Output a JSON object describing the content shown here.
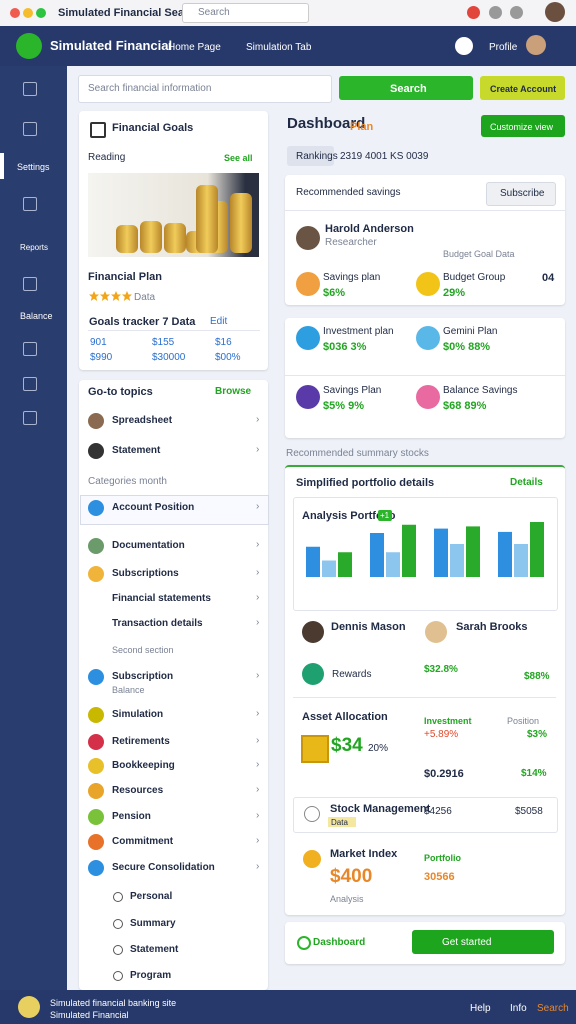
{
  "browser": {
    "tab_title": "Simulated Financial Search",
    "search": "Search"
  },
  "header": {
    "brand": "Simulated Financial",
    "nav": [
      "Home Page",
      "Simulation Tab"
    ],
    "profile": "Profile"
  },
  "sidebar": [
    "Settings",
    "Reports",
    "Balance"
  ],
  "toolbar": {
    "search_placeholder": "Search financial information",
    "search_button": "Search",
    "create_button": "Create Account"
  },
  "goal_card": {
    "title": "Financial Goals",
    "subtitle": "Reading",
    "link": "See all",
    "plan": "Financial Plan",
    "rating": "Data",
    "section": "Goals tracker 7 Data",
    "section_link": "Edit",
    "stats": [
      [
        "901",
        "$990"
      ],
      [
        "$155",
        "$30000"
      ],
      [
        "$16",
        "$00%"
      ]
    ]
  },
  "topics": {
    "header": "Go-to topics",
    "header_link": "Browse",
    "items": [
      "Spreadsheet",
      "Statement",
      "Categories month",
      "Account Position",
      "Documentation",
      "Subscriptions",
      "Financial statements",
      "Transaction details",
      "Second section",
      "Subscription",
      "Balance",
      "Simulation",
      "Retirements",
      "Bookkeeping",
      "Resources",
      "Pension",
      "Commitment",
      "Secure Consolidation",
      "Personal",
      "Summary",
      "Statement",
      "Program"
    ]
  },
  "dashboard": {
    "title": "Dashboard",
    "tag": "Plan",
    "customize": "Customize view",
    "chip": "Rankings",
    "code": "2319 4001 KS 0039",
    "savings": {
      "title": "Recommended savings",
      "button": "Subscribe",
      "person": "Harold Anderson",
      "role": "Researcher",
      "note": "Budget Goal Data",
      "count": "04",
      "metrics": [
        {
          "label": "Savings plan",
          "value": "$6%"
        },
        {
          "label": "Budget Group",
          "value": "29%"
        },
        {
          "label": "Investment plan",
          "value": "$036 3%"
        },
        {
          "label": "Gemini Plan",
          "value": "$0% 88%"
        },
        {
          "label": "Savings Plan",
          "value": "$5% 9%"
        },
        {
          "label": "Balance Savings",
          "value": "$68 89%"
        }
      ]
    },
    "summary_label": "Recommended summary stocks",
    "portfolio": {
      "title": "Simplified portfolio details",
      "link": "Details",
      "chart": {
        "type": "bar",
        "title": "Analysis Portfolio",
        "badge": "+1",
        "categories": [
          null,
          null,
          null,
          null
        ],
        "ylim": [
          0,
          100
        ],
        "series": [
          {
            "color": "#2e8fe0",
            "values": [
              55,
              80,
              88,
              82
            ]
          },
          {
            "color": "#8cc6ef",
            "values": [
              30,
              45,
              60,
              60
            ]
          },
          {
            "color": "#2aaa2a",
            "values": [
              45,
              95,
              92,
              100
            ]
          }
        ]
      },
      "people": [
        "Dennis Mason",
        "Sarah Brooks"
      ],
      "rewards": "Rewards",
      "rewards_a": "$32.8%",
      "rewards_b": "$88%",
      "allocation": {
        "title": "Asset Allocation",
        "col_a": "Investment",
        "col_b": "Position",
        "big": "$34",
        "pct": "20%",
        "a1": "+5.89%",
        "b1": "$3%",
        "a2": "$0.2916",
        "b2": "$14%"
      },
      "stock": {
        "title": "Stock Management",
        "badge": "Data",
        "a": "$4256",
        "b": "$5058"
      },
      "market": {
        "title": "Market Index",
        "big": "$400",
        "sub": "Analysis",
        "col": "Portfolio",
        "val": "30566"
      }
    },
    "footer_link": "Dashboard",
    "start": "Get started"
  },
  "footer": {
    "line1": "Simulated financial banking site",
    "line2": "Simulated Financial",
    "links": [
      "Help",
      "Info",
      "Search"
    ]
  }
}
